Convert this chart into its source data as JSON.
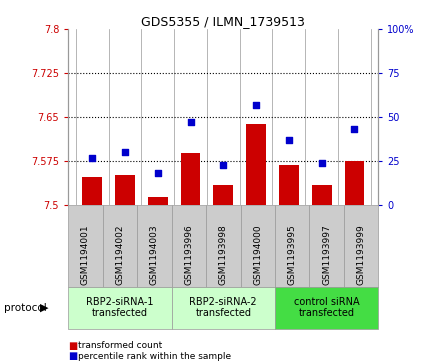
{
  "title": "GDS5355 / ILMN_1739513",
  "samples": [
    "GSM1194001",
    "GSM1194002",
    "GSM1194003",
    "GSM1193996",
    "GSM1193998",
    "GSM1194000",
    "GSM1193995",
    "GSM1193997",
    "GSM1193999"
  ],
  "bar_values": [
    7.548,
    7.552,
    7.514,
    7.588,
    7.535,
    7.638,
    7.569,
    7.535,
    7.575
  ],
  "dot_values": [
    27,
    30,
    18,
    47,
    23,
    57,
    37,
    24,
    43
  ],
  "ylim_left": [
    7.5,
    7.8
  ],
  "ylim_right": [
    0,
    100
  ],
  "yticks_left": [
    7.5,
    7.575,
    7.65,
    7.725,
    7.8
  ],
  "yticks_right": [
    0,
    25,
    50,
    75,
    100
  ],
  "ytick_labels_left": [
    "7.5",
    "7.575",
    "7.65",
    "7.725",
    "7.8"
  ],
  "ytick_labels_right": [
    "0",
    "25",
    "50",
    "75",
    "100%"
  ],
  "hlines": [
    7.575,
    7.65,
    7.725
  ],
  "groups": [
    {
      "label": "RBP2-siRNA-1\ntransfected",
      "start": 0,
      "end": 3,
      "color": "#ccffcc"
    },
    {
      "label": "RBP2-siRNA-2\ntransfected",
      "start": 3,
      "end": 6,
      "color": "#ccffcc"
    },
    {
      "label": "control siRNA\ntransfected",
      "start": 6,
      "end": 9,
      "color": "#44dd44"
    }
  ],
  "bar_color": "#cc0000",
  "dot_color": "#0000cc",
  "bar_base": 7.5,
  "bg_color": "#cccccc",
  "plot_bg": "#ffffff",
  "legend_bar_label": "transformed count",
  "legend_dot_label": "percentile rank within the sample",
  "protocol_label": "protocol"
}
